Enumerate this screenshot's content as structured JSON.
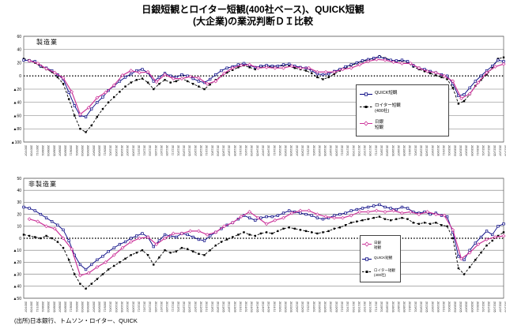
{
  "title": {
    "line1": "日銀短観とロイター短観(400社ベース)、QUICK短観",
    "line2": "(大企業)の業況判断ＤＩ比較"
  },
  "footer": "(出所)日本銀行、トムソン・ロイター、QUICK",
  "x_labels": [
    "2007/07",
    "2007/09",
    "2007/11",
    "2008/01",
    "2008/03",
    "2008/05",
    "2008/07",
    "2008/09",
    "2008/11",
    "2009/01",
    "2009/03",
    "2009/05",
    "2009/07",
    "2009/09",
    "2009/11",
    "2010/01",
    "2010/03",
    "2010/05",
    "2010/07",
    "2010/09",
    "2010/11",
    "2011/01",
    "2011/03",
    "2011/05",
    "2011/07",
    "2011/09",
    "2011/11",
    "2012/01",
    "2012/03",
    "2012/05",
    "2012/07",
    "2012/09",
    "2012/11",
    "2013/01",
    "2013/03",
    "2013/05",
    "2013/07",
    "2013/09",
    "2013/11",
    "2014/01",
    "2014/03",
    "2014/05",
    "2014/07",
    "2014/09",
    "2014/11",
    "2015/01",
    "2015/03",
    "2015/05",
    "2015/07",
    "2015/09",
    "2015/11",
    "2016/01",
    "2016/03",
    "2016/05",
    "2016/07",
    "2016/09",
    "2016/11",
    "2017/01",
    "2017/03",
    "2017/05",
    "2017/07",
    "2017/09",
    "2017/11",
    "2018/01",
    "2018/03",
    "2018/05",
    "2018/07",
    "2018/09",
    "2018/11",
    "2019/01",
    "2019/03",
    "2019/05",
    "2019/07",
    "2019/09",
    "2019/11",
    "2020/01",
    "2020/03",
    "2020/05",
    "2020/07",
    "2020/09",
    "2020/11",
    "2021/01",
    "2021/03",
    "2021/05",
    "2021/07",
    "2021/09"
  ],
  "chart_data": [
    {
      "type": "line",
      "panel_label": "製造業",
      "ylim": [
        -100,
        60
      ],
      "ytick_step": 20,
      "negative_tick_prefix": "▲",
      "grid": true,
      "zero_line": "dotted",
      "legend_position": "inside-right",
      "legend_order": [
        0,
        1,
        2
      ],
      "series": [
        {
          "name": "QUICK短観",
          "legend_lines": [
            "QUICK短観"
          ],
          "color": "#000080",
          "marker": "square-open",
          "line": "solid",
          "values": [
            24,
            23,
            22,
            15,
            12,
            8,
            2,
            -5,
            -25,
            -45,
            -60,
            -62,
            -50,
            -40,
            -32,
            -22,
            -15,
            -8,
            -2,
            3,
            8,
            10,
            5,
            -8,
            -2,
            4,
            0,
            -2,
            2,
            0,
            -4,
            -8,
            -10,
            -5,
            2,
            8,
            12,
            14,
            17,
            19,
            16,
            13,
            15,
            16,
            15,
            15,
            17,
            18,
            15,
            13,
            12,
            8,
            3,
            2,
            3,
            7,
            10,
            14,
            17,
            20,
            23,
            25,
            27,
            29,
            26,
            24,
            23,
            24,
            22,
            16,
            12,
            10,
            7,
            5,
            2,
            0,
            -12,
            -30,
            -28,
            -18,
            -8,
            0,
            8,
            15,
            24,
            22
          ]
        },
        {
          "name": "ロイター短観(400社)",
          "legend_lines": [
            "ロイター短観",
            "(400社)"
          ],
          "color": "#000000",
          "marker": "square-filled",
          "line": "dashed",
          "values": [
            26,
            24,
            20,
            14,
            10,
            6,
            -2,
            -12,
            -35,
            -60,
            -80,
            -85,
            -75,
            -62,
            -50,
            -40,
            -32,
            -24,
            -16,
            -10,
            -6,
            -4,
            -10,
            -20,
            -12,
            -6,
            -10,
            -8,
            -4,
            -8,
            -12,
            -16,
            -20,
            -13,
            -6,
            0,
            5,
            9,
            13,
            16,
            13,
            10,
            13,
            15,
            13,
            14,
            16,
            15,
            12,
            10,
            8,
            4,
            -2,
            -5,
            -2,
            3,
            8,
            12,
            16,
            19,
            22,
            24,
            26,
            30,
            27,
            24,
            22,
            23,
            20,
            14,
            10,
            7,
            4,
            1,
            -2,
            -5,
            -18,
            -42,
            -38,
            -28,
            -15,
            -6,
            2,
            12,
            26,
            28
          ]
        },
        {
          "name": "日銀短観",
          "legend_lines": [
            "日銀",
            "短観"
          ],
          "color": "#cc3399",
          "marker": "diamond-open",
          "line": "solid",
          "x_start": 1,
          "x_step": 1.5,
          "values": [
            23,
            19,
            11,
            5,
            -3,
            -24,
            -58,
            -48,
            -33,
            -25,
            -14,
            1,
            8,
            5,
            6,
            -9,
            2,
            -4,
            -4,
            -1,
            -3,
            -12,
            -8,
            4,
            12,
            16,
            17,
            12,
            13,
            12,
            12,
            15,
            12,
            12,
            6,
            6,
            6,
            10,
            12,
            17,
            22,
            25,
            24,
            21,
            19,
            19,
            12,
            7,
            5,
            0,
            -8,
            -34,
            -27,
            -10,
            5,
            14,
            18
          ]
        }
      ]
    },
    {
      "type": "line",
      "panel_label": "非製造業",
      "ylim": [
        -50,
        50
      ],
      "ytick_step": 10,
      "negative_tick_prefix": "▲",
      "grid": true,
      "zero_line": "dotted",
      "legend_position": "inside-right",
      "legend_order": [
        2,
        0,
        1
      ],
      "series": [
        {
          "name": "QUICK短観",
          "legend_lines": [
            "QUICK短観"
          ],
          "color": "#000080",
          "marker": "square-open",
          "line": "solid",
          "values": [
            26,
            25,
            23,
            20,
            17,
            14,
            11,
            7,
            -2,
            -14,
            -22,
            -26,
            -22,
            -18,
            -15,
            -11,
            -8,
            -5,
            -3,
            0,
            2,
            4,
            1,
            -7,
            -2,
            3,
            2,
            1,
            4,
            3,
            1,
            -1,
            -2,
            2,
            5,
            8,
            11,
            13,
            16,
            19,
            17,
            15,
            17,
            18,
            18,
            19,
            21,
            23,
            22,
            21,
            20,
            19,
            17,
            16,
            17,
            19,
            20,
            21,
            23,
            24,
            25,
            26,
            27,
            28,
            26,
            25,
            24,
            26,
            25,
            22,
            21,
            22,
            20,
            21,
            19,
            18,
            5,
            -15,
            -18,
            -10,
            -4,
            1,
            6,
            3,
            10,
            12
          ]
        },
        {
          "name": "ロイター短観(400社)",
          "legend_lines": [
            "ロイター短観",
            "(400社)"
          ],
          "color": "#000000",
          "marker": "square-filled",
          "line": "dashed",
          "values": [
            3,
            2,
            1,
            0,
            2,
            0,
            -3,
            -8,
            -18,
            -30,
            -38,
            -42,
            -38,
            -34,
            -30,
            -26,
            -23,
            -20,
            -17,
            -14,
            -12,
            -10,
            -14,
            -22,
            -16,
            -10,
            -12,
            -11,
            -8,
            -9,
            -11,
            -13,
            -14,
            -10,
            -6,
            -3,
            -1,
            1,
            3,
            5,
            3,
            2,
            4,
            5,
            4,
            6,
            8,
            9,
            8,
            7,
            6,
            5,
            4,
            5,
            6,
            8,
            9,
            11,
            13,
            14,
            15,
            16,
            17,
            18,
            16,
            15,
            16,
            17,
            16,
            13,
            12,
            13,
            12,
            13,
            11,
            10,
            0,
            -25,
            -30,
            -24,
            -18,
            -12,
            -6,
            -2,
            2,
            5
          ]
        },
        {
          "name": "日銀短観",
          "legend_lines": [
            "日銀",
            "短観"
          ],
          "color": "#cc3399",
          "marker": "diamond-open",
          "line": "solid",
          "x_start": 1,
          "x_step": 1.5,
          "values": [
            16,
            14,
            10,
            8,
            0,
            -9,
            -31,
            -29,
            -24,
            -20,
            -14,
            -8,
            -3,
            0,
            1,
            -5,
            0,
            4,
            4,
            6,
            6,
            3,
            5,
            10,
            13,
            18,
            22,
            17,
            12,
            15,
            17,
            21,
            23,
            23,
            20,
            18,
            17,
            17,
            19,
            22,
            22,
            23,
            22,
            23,
            21,
            22,
            20,
            22,
            20,
            19,
            7,
            -17,
            -12,
            -5,
            -1,
            1,
            2
          ]
        }
      ]
    }
  ]
}
